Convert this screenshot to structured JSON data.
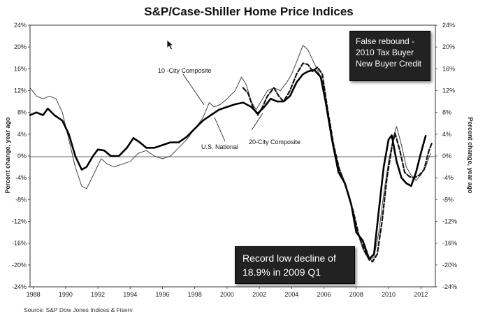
{
  "chart_data": {
    "type": "line",
    "title": "S&P/Case-Shiller Home Price Indices",
    "ylabel_left": "Percent change, year ago",
    "ylabel_right": "Percent change, year ago",
    "ylim": [
      -24,
      24
    ],
    "yticks": [
      24,
      20,
      16,
      12,
      8,
      4,
      0,
      -4,
      -8,
      -12,
      -16,
      -20,
      -24
    ],
    "ytick_labels_left": [
      "24%",
      "20%",
      "16%",
      "12%",
      "8%",
      "4%",
      "0%",
      "-4%",
      "-8%",
      "-12%",
      "-16%",
      "-20%",
      "-24%"
    ],
    "ytick_labels_right": [
      "24%",
      "20%",
      "16%",
      "12%",
      "8%",
      "4%",
      "0%",
      "-4%",
      "-8%",
      "-12%",
      "-16%",
      "-20%",
      "-24%"
    ],
    "xlim": [
      1987.8,
      2012.9
    ],
    "xticks": [
      1988,
      1990,
      1992,
      1994,
      1996,
      1998,
      2000,
      2002,
      2004,
      2006,
      2008,
      2010,
      2012
    ],
    "xtick_labels": [
      "1988",
      "1990",
      "1992",
      "1994",
      "1996",
      "1998",
      "2000",
      "2002",
      "2004",
      "2006",
      "2008",
      "2010",
      "2012"
    ],
    "series": [
      {
        "name": "10 -City Composite",
        "style": "thin",
        "color": "#444444",
        "points": [
          [
            1987.8,
            12.5
          ],
          [
            1988.2,
            11
          ],
          [
            1988.6,
            10.5
          ],
          [
            1989.0,
            11
          ],
          [
            1989.4,
            10.5
          ],
          [
            1989.8,
            8
          ],
          [
            1990.2,
            3
          ],
          [
            1990.6,
            -2
          ],
          [
            1991.0,
            -5.5
          ],
          [
            1991.3,
            -6
          ],
          [
            1991.8,
            -3
          ],
          [
            1992.2,
            -0.5
          ],
          [
            1992.6,
            -1.5
          ],
          [
            1993.0,
            -2
          ],
          [
            1993.5,
            -1.5
          ],
          [
            1994.0,
            -1
          ],
          [
            1994.5,
            0.5
          ],
          [
            1995.0,
            1
          ],
          [
            1995.5,
            0
          ],
          [
            1996.0,
            -0.5
          ],
          [
            1996.5,
            0
          ],
          [
            1997.0,
            1.5
          ],
          [
            1997.5,
            3
          ],
          [
            1998.0,
            5
          ],
          [
            1998.5,
            7
          ],
          [
            1998.9,
            9.8
          ],
          [
            1999.2,
            9
          ],
          [
            1999.6,
            9.5
          ],
          [
            2000.0,
            10.5
          ],
          [
            2000.5,
            12
          ],
          [
            2000.9,
            14.5
          ],
          [
            2001.2,
            13
          ],
          [
            2001.5,
            10
          ],
          [
            2001.8,
            8.5
          ],
          [
            2002.1,
            10
          ],
          [
            2002.5,
            12
          ],
          [
            2002.9,
            12.5
          ],
          [
            2003.3,
            12
          ],
          [
            2003.7,
            13.5
          ],
          [
            2004.0,
            15
          ],
          [
            2004.4,
            18
          ],
          [
            2004.7,
            20.3
          ],
          [
            2005.0,
            19.5
          ],
          [
            2005.4,
            17
          ],
          [
            2005.8,
            14.5
          ],
          [
            2006.0,
            12
          ],
          [
            2006.4,
            5
          ],
          [
            2006.8,
            -1
          ],
          [
            2007.2,
            -4
          ],
          [
            2007.6,
            -7.5
          ],
          [
            2008.0,
            -13
          ],
          [
            2008.4,
            -17
          ],
          [
            2008.8,
            -19.2
          ],
          [
            2009.1,
            -18.5
          ],
          [
            2009.4,
            -14
          ],
          [
            2009.7,
            -7
          ],
          [
            2010.0,
            -1
          ],
          [
            2010.3,
            3.5
          ],
          [
            2010.5,
            5.4
          ],
          [
            2010.8,
            2
          ],
          [
            2011.1,
            -2
          ],
          [
            2011.4,
            -3.5
          ],
          [
            2011.7,
            -4.5
          ],
          [
            2012.0,
            -3.5
          ],
          [
            2012.3,
            -2
          ],
          [
            2012.6,
            0.5
          ]
        ]
      },
      {
        "name": "20-City Composite",
        "style": "dashed",
        "color": "#111111",
        "points": [
          [
            2001.0,
            12.5
          ],
          [
            2001.3,
            11.5
          ],
          [
            2001.6,
            9
          ],
          [
            2001.9,
            7.5
          ],
          [
            2002.2,
            9
          ],
          [
            2002.5,
            11
          ],
          [
            2002.9,
            12.5
          ],
          [
            2003.2,
            11
          ],
          [
            2003.5,
            10
          ],
          [
            2003.9,
            12
          ],
          [
            2004.3,
            15
          ],
          [
            2004.7,
            17
          ],
          [
            2005.0,
            16.8
          ],
          [
            2005.3,
            15.5
          ],
          [
            2005.6,
            16.3
          ],
          [
            2005.9,
            15
          ],
          [
            2006.2,
            9
          ],
          [
            2006.6,
            2
          ],
          [
            2007.0,
            -3
          ],
          [
            2007.4,
            -6
          ],
          [
            2007.8,
            -10
          ],
          [
            2008.2,
            -15
          ],
          [
            2008.6,
            -18
          ],
          [
            2009.0,
            -19.4
          ],
          [
            2009.3,
            -18
          ],
          [
            2009.6,
            -12
          ],
          [
            2009.9,
            -4
          ],
          [
            2010.2,
            1.5
          ],
          [
            2010.4,
            4.2
          ],
          [
            2010.7,
            1
          ],
          [
            2011.0,
            -3
          ],
          [
            2011.3,
            -3.8
          ],
          [
            2011.6,
            -4
          ],
          [
            2011.9,
            -3.5
          ],
          [
            2012.2,
            -2.5
          ],
          [
            2012.5,
            1
          ],
          [
            2012.7,
            2.5
          ]
        ]
      },
      {
        "name": "U.S. National",
        "style": "thick",
        "color": "#000000",
        "points": [
          [
            1987.8,
            7.5
          ],
          [
            1988.2,
            8
          ],
          [
            1988.6,
            7.5
          ],
          [
            1988.9,
            8.7
          ],
          [
            1989.3,
            7.5
          ],
          [
            1989.8,
            6.5
          ],
          [
            1990.2,
            4
          ],
          [
            1990.6,
            0
          ],
          [
            1991.0,
            -2.5
          ],
          [
            1991.3,
            -2
          ],
          [
            1991.7,
            0
          ],
          [
            1992.0,
            1.2
          ],
          [
            1992.4,
            1
          ],
          [
            1992.8,
            0
          ],
          [
            1993.3,
            0
          ],
          [
            1993.8,
            1.5
          ],
          [
            1994.2,
            3.3
          ],
          [
            1994.6,
            2.5
          ],
          [
            1995.0,
            1.5
          ],
          [
            1995.5,
            1.5
          ],
          [
            1996.0,
            2
          ],
          [
            1996.5,
            2.5
          ],
          [
            1997.0,
            2.5
          ],
          [
            1997.5,
            3.5
          ],
          [
            1998.0,
            5
          ],
          [
            1998.5,
            6.5
          ],
          [
            1999.0,
            7.5
          ],
          [
            1999.5,
            8.5
          ],
          [
            2000.0,
            9
          ],
          [
            2000.5,
            9.5
          ],
          [
            2001.0,
            9.8
          ],
          [
            2001.5,
            9
          ],
          [
            2001.9,
            7.8
          ],
          [
            2002.3,
            9
          ],
          [
            2002.7,
            10.5
          ],
          [
            2003.1,
            10
          ],
          [
            2003.5,
            10
          ],
          [
            2003.9,
            11
          ],
          [
            2004.3,
            13.5
          ],
          [
            2004.7,
            15
          ],
          [
            2005.0,
            15.5
          ],
          [
            2005.4,
            15.8
          ],
          [
            2005.8,
            14.5
          ],
          [
            2006.1,
            10
          ],
          [
            2006.5,
            3
          ],
          [
            2006.9,
            -3
          ],
          [
            2007.3,
            -5
          ],
          [
            2007.7,
            -9
          ],
          [
            2008.0,
            -14
          ],
          [
            2008.4,
            -15.5
          ],
          [
            2008.8,
            -18.9
          ],
          [
            2009.1,
            -18
          ],
          [
            2009.4,
            -10
          ],
          [
            2009.7,
            -2
          ],
          [
            2010.0,
            3
          ],
          [
            2010.2,
            3.8
          ],
          [
            2010.5,
            -1
          ],
          [
            2010.8,
            -4
          ],
          [
            2011.1,
            -5
          ],
          [
            2011.4,
            -5.5
          ],
          [
            2011.7,
            -3
          ],
          [
            2012.0,
            0.5
          ],
          [
            2012.3,
            3.7
          ]
        ]
      }
    ],
    "series_labels": {
      "ten_city": "10 -City Composite",
      "us_national": "U.S. National",
      "twenty_city": "20-City Composite"
    },
    "annotations": [
      {
        "id": "false-rebound",
        "lines": [
          "False rebound -",
          "2010 Tax Buyer",
          "New Buyer Credit"
        ]
      },
      {
        "id": "record-low",
        "lines": [
          "Record low decline of",
          "18.9% in 2009 Q1"
        ]
      }
    ],
    "source": "Source: S&P Dow Jones Indices & Fiserv",
    "grid": false,
    "legend": "inline labels"
  }
}
